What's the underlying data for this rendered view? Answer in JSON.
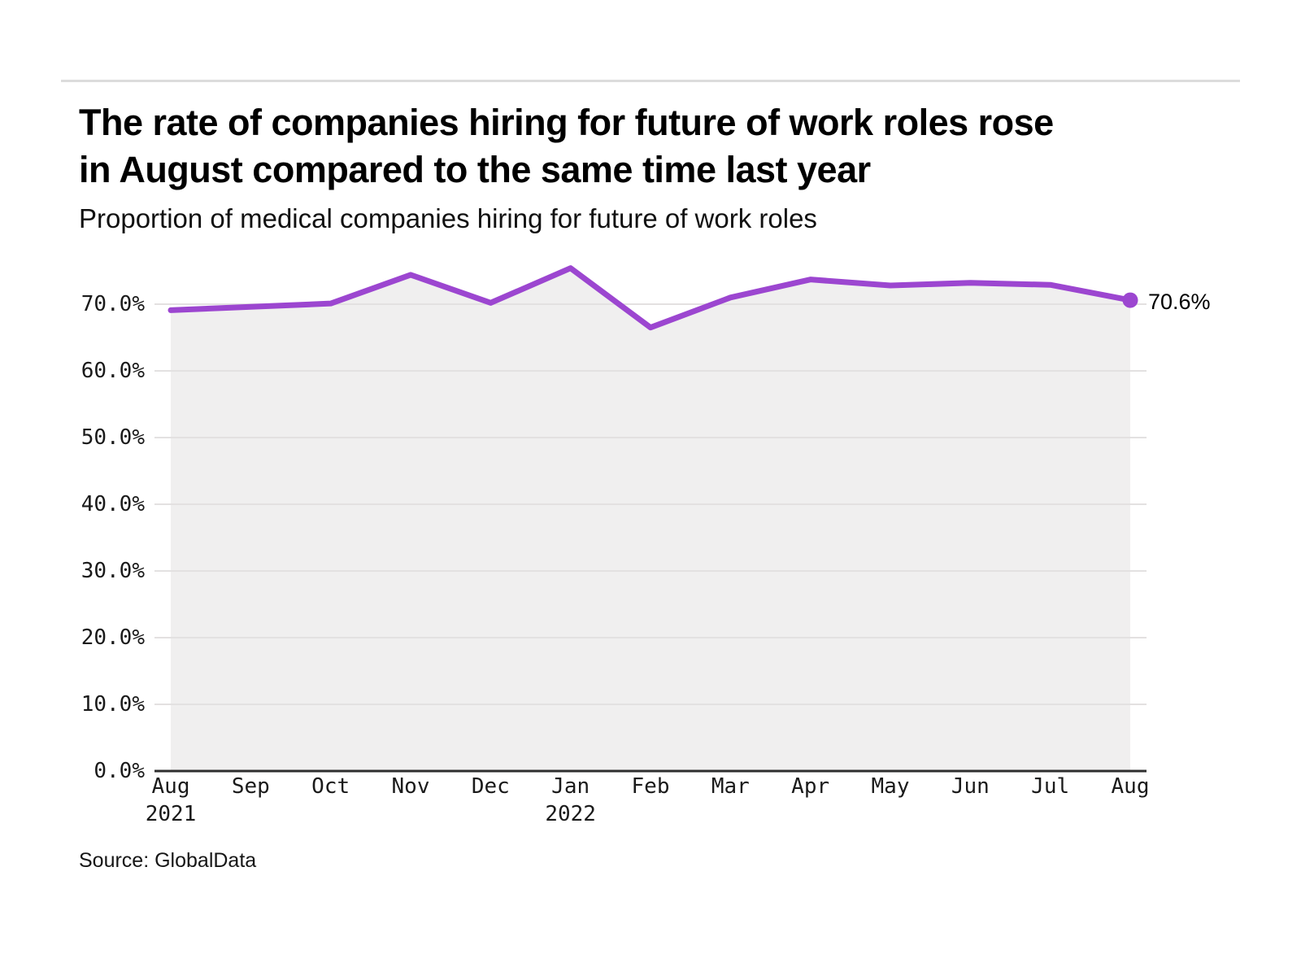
{
  "header": {
    "title_line1": "The rate of companies hiring for future of work roles rose",
    "title_line2": "in August compared to the same time last year",
    "subtitle": "Proportion of medical companies hiring for future of work roles"
  },
  "footer": {
    "source": "Source: GlobalData"
  },
  "chart_data": {
    "type": "area",
    "title": "Proportion of medical companies hiring for future of work roles",
    "xlabel": "",
    "ylabel": "",
    "x_labels": [
      "Aug",
      "Sep",
      "Oct",
      "Nov",
      "Dec",
      "Jan",
      "Feb",
      "Mar",
      "Apr",
      "May",
      "Jun",
      "Jul",
      "Aug"
    ],
    "x_year_labels": [
      {
        "index": 0,
        "label": "2021"
      },
      {
        "index": 5,
        "label": "2022"
      }
    ],
    "series": [
      {
        "name": "Proportion of medical companies hiring for future of work roles",
        "values": [
          69.1,
          69.6,
          70.1,
          74.4,
          70.2,
          75.4,
          66.5,
          71.0,
          73.7,
          72.8,
          73.2,
          72.9,
          70.6
        ]
      }
    ],
    "end_label": "70.6%",
    "y_ticks": [
      {
        "value": 0,
        "label": "0.0%"
      },
      {
        "value": 10,
        "label": "10.0%"
      },
      {
        "value": 20,
        "label": "20.0%"
      },
      {
        "value": 30,
        "label": "30.0%"
      },
      {
        "value": 40,
        "label": "40.0%"
      },
      {
        "value": 50,
        "label": "50.0%"
      },
      {
        "value": 60,
        "label": "60.0%"
      },
      {
        "value": 70,
        "label": "70.0%"
      }
    ],
    "ylim": [
      0,
      76.5
    ],
    "grid": true,
    "legend_position": "none",
    "colors": {
      "line": "#9c46d0",
      "dot": "#9c46d0",
      "area_fill": "#f0efef",
      "gridline": "#e3e1e1",
      "axis_line": "#2e2e2e",
      "text": "#1a1a1a"
    }
  }
}
